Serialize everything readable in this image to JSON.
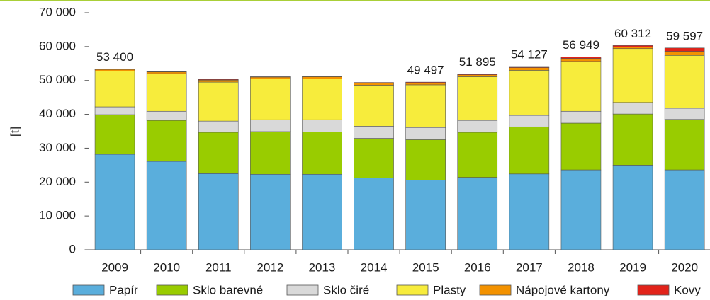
{
  "chart_data": {
    "type": "stacked_bar",
    "y_label": "[t]",
    "categories": [
      "2009",
      "2010",
      "2011",
      "2012",
      "2013",
      "2014",
      "2015",
      "2016",
      "2017",
      "2018",
      "2019",
      "2020"
    ],
    "series": [
      {
        "name": "Papír",
        "color": "#5aaedc",
        "values": [
          28200,
          26100,
          22500,
          22300,
          22300,
          21200,
          20600,
          21400,
          22400,
          23600,
          25000,
          23600
        ]
      },
      {
        "name": "Sklo barevné",
        "color": "#99cc00",
        "values": [
          11700,
          12100,
          12200,
          12600,
          12500,
          11700,
          11900,
          13300,
          13900,
          13800,
          15100,
          14900
        ]
      },
      {
        "name": "Sklo čiré",
        "color": "#d9d9d9",
        "values": [
          2300,
          2700,
          3300,
          3500,
          3600,
          3600,
          3600,
          3500,
          3400,
          3500,
          3400,
          3300
        ]
      },
      {
        "name": "Plasty",
        "color": "#f7ec3c",
        "values": [
          10600,
          11100,
          11500,
          12100,
          12100,
          12100,
          12600,
          12900,
          13300,
          14700,
          15900,
          15600
        ]
      },
      {
        "name": "Nápojové kartony",
        "color": "#f39200",
        "values": [
          450,
          500,
          600,
          500,
          600,
          600,
          600,
          600,
          800,
          900,
          500,
          1200
        ]
      },
      {
        "name": "Kovy",
        "color": "#e2231a",
        "values": [
          150,
          100,
          200,
          100,
          100,
          200,
          197,
          195,
          327,
          449,
          412,
          997
        ]
      }
    ],
    "totals": [
      53400,
      null,
      null,
      null,
      null,
      null,
      49497,
      51895,
      54127,
      56949,
      60312,
      59597
    ],
    "total_labels": [
      "53 400",
      null,
      null,
      null,
      null,
      null,
      "49 497",
      "51 895",
      "54 127",
      "56 949",
      "60 312",
      "59 597"
    ],
    "ylim": [
      0,
      70000
    ],
    "yticks": [
      0,
      {
        "value": 10000,
        "label": "10 000"
      },
      {
        "value": 20000,
        "label": "20 000"
      },
      {
        "value": 30000,
        "label": "30 000"
      },
      {
        "value": 40000,
        "label": "40 000"
      },
      {
        "value": 50000,
        "label": "50 000"
      },
      {
        "value": 60000,
        "label": "60 000"
      },
      {
        "value": 70000,
        "label": "70 000"
      }
    ],
    "grid": false,
    "legend": "bottom"
  }
}
